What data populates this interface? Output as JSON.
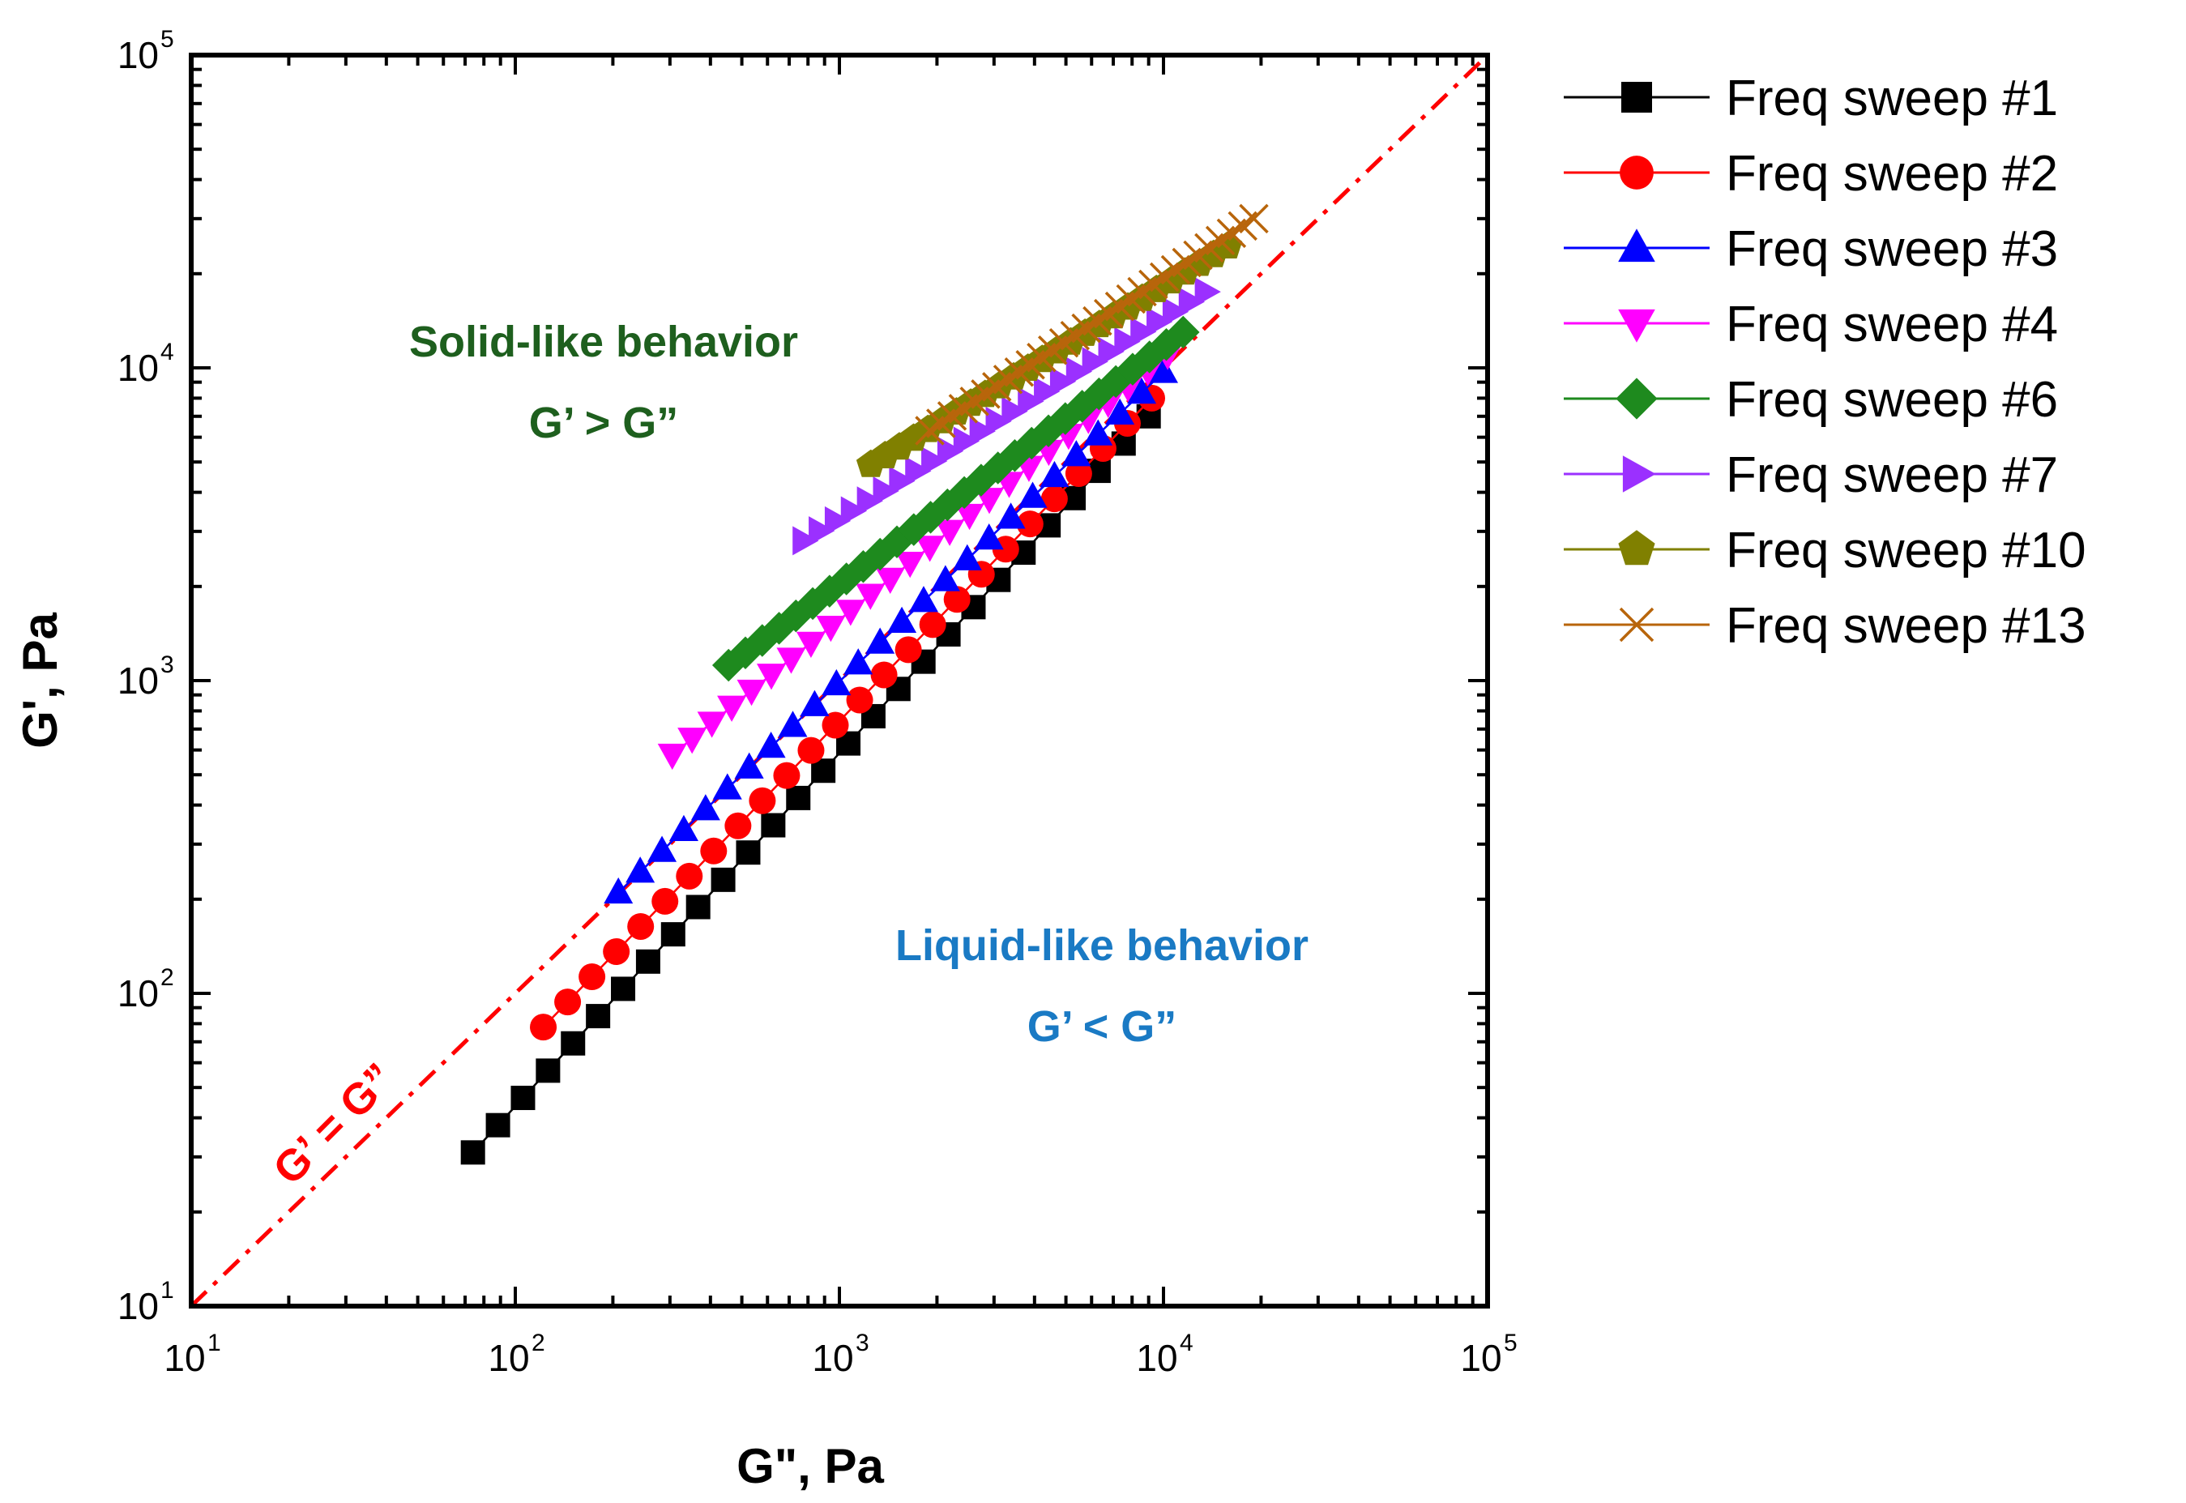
{
  "chart_data": {
    "type": "scatter",
    "xscale": "log",
    "yscale": "log",
    "xlabel": "G\", Pa",
    "ylabel": "G', Pa",
    "xlim": [
      10,
      100000
    ],
    "ylim": [
      10,
      100000
    ],
    "x_ticks": [
      {
        "value": 10,
        "base": "10",
        "exp": "1"
      },
      {
        "value": 100,
        "base": "10",
        "exp": "2"
      },
      {
        "value": 1000,
        "base": "10",
        "exp": "3"
      },
      {
        "value": 10000,
        "base": "10",
        "exp": "4"
      },
      {
        "value": 100000,
        "base": "10",
        "exp": "5"
      }
    ],
    "y_ticks": [
      {
        "value": 10,
        "base": "10",
        "exp": "1"
      },
      {
        "value": 100,
        "base": "10",
        "exp": "2"
      },
      {
        "value": 1000,
        "base": "10",
        "exp": "3"
      },
      {
        "value": 10000,
        "base": "10",
        "exp": "4"
      },
      {
        "value": 100000,
        "base": "10",
        "exp": "5"
      }
    ],
    "reference_line": {
      "label": "G’ = G”",
      "color": "#ff0000",
      "style": "dash-dot",
      "slope": 1
    },
    "annotations": [
      {
        "line1": "Solid-like behavior",
        "line2": "G’ > G”",
        "color": "#1e5f1e",
        "region": "upper-left"
      },
      {
        "line1": "Liquid-like behavior",
        "line2": "G’ < G”",
        "color": "#1a7ac4",
        "region": "lower-right"
      }
    ],
    "legend_position": "right",
    "series": [
      {
        "name": "Freq sweep #1",
        "marker": "square",
        "color": "#000000",
        "line": true,
        "x_start": 74,
        "x_end": 9000,
        "y_start": 31,
        "y_end": 7000,
        "n": 28
      },
      {
        "name": "Freq sweep #2",
        "marker": "circle",
        "color": "#ff0000",
        "line": true,
        "x_start": 122,
        "x_end": 9200,
        "y_start": 78,
        "y_end": 8000,
        "n": 26
      },
      {
        "name": "Freq sweep #3",
        "marker": "triangle-up",
        "color": "#0000ff",
        "line": true,
        "x_start": 208,
        "x_end": 10000,
        "y_start": 210,
        "y_end": 9700,
        "n": 26
      },
      {
        "name": "Freq sweep #4",
        "marker": "triangle-down",
        "color": "#ff00ff",
        "line": true,
        "x_start": 305,
        "x_end": 10300,
        "y_start": 580,
        "y_end": 11000,
        "n": 26
      },
      {
        "name": "Freq sweep #6",
        "marker": "diamond",
        "color": "#1e8a1e",
        "line": true,
        "x_start": 455,
        "x_end": 11500,
        "y_start": 1120,
        "y_end": 13000,
        "n": 28
      },
      {
        "name": "Freq sweep #7",
        "marker": "triangle-right",
        "color": "#9b30ff",
        "line": true,
        "x_start": 775,
        "x_end": 13500,
        "y_start": 2800,
        "y_end": 17500,
        "n": 26
      },
      {
        "name": "Freq sweep #10",
        "marker": "pentagon",
        "color": "#808000",
        "line": true,
        "x_start": 1250,
        "x_end": 15800,
        "y_start": 4900,
        "y_end": 24500,
        "n": 26
      },
      {
        "name": "Freq sweep #13",
        "marker": "x",
        "color": "#b8650b",
        "line": true,
        "x_start": 1900,
        "x_end": 19000,
        "y_start": 6300,
        "y_end": 30000,
        "n": 30
      }
    ]
  }
}
